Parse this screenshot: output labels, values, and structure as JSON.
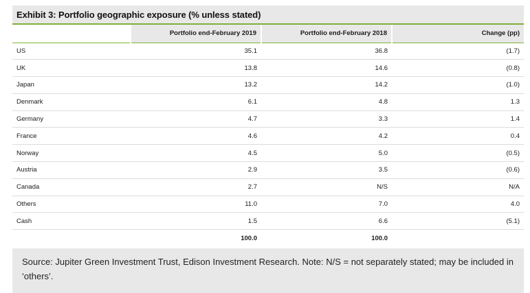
{
  "exhibit": {
    "title": "Exhibit 3: Portfolio geographic exposure (% unless stated)",
    "columns": [
      "",
      "Portfolio end-February 2019",
      "Portfolio end-February 2018",
      "Change (pp)"
    ],
    "rows": [
      {
        "label": "US",
        "v2019": "35.1",
        "v2018": "36.8",
        "change": "(1.7)"
      },
      {
        "label": "UK",
        "v2019": "13.8",
        "v2018": "14.6",
        "change": "(0.8)"
      },
      {
        "label": "Japan",
        "v2019": "13.2",
        "v2018": "14.2",
        "change": "(1.0)"
      },
      {
        "label": "Denmark",
        "v2019": "6.1",
        "v2018": "4.8",
        "change": "1.3"
      },
      {
        "label": "Germany",
        "v2019": "4.7",
        "v2018": "3.3",
        "change": "1.4"
      },
      {
        "label": "France",
        "v2019": "4.6",
        "v2018": "4.2",
        "change": "0.4"
      },
      {
        "label": "Norway",
        "v2019": "4.5",
        "v2018": "5.0",
        "change": "(0.5)"
      },
      {
        "label": "Austria",
        "v2019": "2.9",
        "v2018": "3.5",
        "change": "(0.6)"
      },
      {
        "label": "Canada",
        "v2019": "2.7",
        "v2018": "N/S",
        "change": "N/A"
      },
      {
        "label": "Others",
        "v2019": "11.0",
        "v2018": "7.0",
        "change": "4.0"
      },
      {
        "label": "Cash",
        "v2019": "1.5",
        "v2018": "6.6",
        "change": "(5.1)"
      }
    ],
    "total": {
      "label": "",
      "v2019": "100.0",
      "v2018": "100.0",
      "change": ""
    },
    "source": "Source: Jupiter Green Investment Trust, Edison Investment Research. Note: N/S = not separately stated; may be included in ‘others’."
  },
  "colors": {
    "accent": "#7fb03a",
    "shade": "#e8e8e8"
  }
}
